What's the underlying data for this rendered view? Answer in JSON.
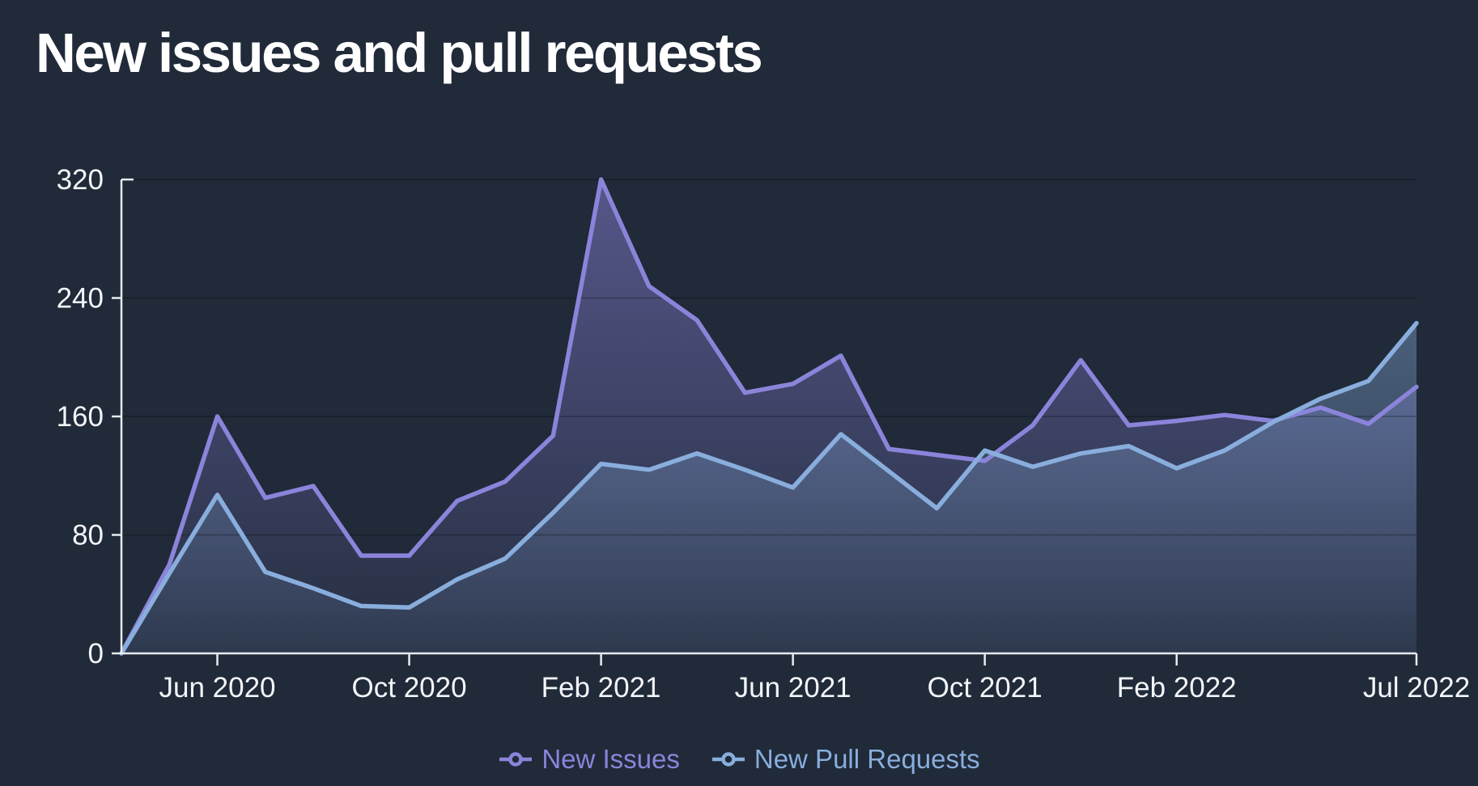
{
  "title": "New issues and pull requests",
  "colors": {
    "background": "#202a39",
    "axis": "#e8ebf0",
    "tick_text": "#f3f5f8",
    "grid": "rgba(0,0,0,0.28)"
  },
  "chart_data": {
    "type": "area",
    "title": "New issues and pull requests",
    "x": [
      "Apr 2020",
      "May 2020",
      "Jun 2020",
      "Jul 2020",
      "Aug 2020",
      "Sep 2020",
      "Oct 2020",
      "Nov 2020",
      "Dec 2020",
      "Jan 2021",
      "Feb 2021",
      "Mar 2021",
      "Apr 2021",
      "May 2021",
      "Jun 2021",
      "Jul 2021",
      "Aug 2021",
      "Sep 2021",
      "Oct 2021",
      "Nov 2021",
      "Dec 2021",
      "Jan 2022",
      "Feb 2022",
      "Mar 2022",
      "Apr 2022",
      "May 2022",
      "Jun 2022",
      "Jul 2022"
    ],
    "x_tick_labels": [
      {
        "label": "Jun 2020",
        "index": 2
      },
      {
        "label": "Oct 2020",
        "index": 6
      },
      {
        "label": "Feb 2021",
        "index": 10
      },
      {
        "label": "Jun 2021",
        "index": 14
      },
      {
        "label": "Oct 2021",
        "index": 18
      },
      {
        "label": "Feb 2022",
        "index": 22
      },
      {
        "label": "Jul 2022",
        "index": 27
      }
    ],
    "y_ticks": [
      0,
      80,
      160,
      240,
      320
    ],
    "ylim": [
      0,
      320
    ],
    "grid": "horizontal",
    "legend_position": "bottom",
    "series": [
      {
        "name": "New Issues",
        "color": "#8b84da",
        "values": [
          0,
          60,
          160,
          105,
          113,
          66,
          66,
          103,
          116,
          147,
          320,
          248,
          225,
          176,
          182,
          201,
          138,
          134,
          130,
          154,
          198,
          154,
          157,
          161,
          157,
          166,
          155,
          180
        ]
      },
      {
        "name": "New Pull Requests",
        "color": "#89aedd",
        "values": [
          0,
          54,
          107,
          55,
          44,
          32,
          31,
          50,
          64,
          95,
          128,
          124,
          135,
          124,
          112,
          148,
          123,
          98,
          137,
          126,
          135,
          140,
          125,
          137,
          156,
          172,
          184,
          223
        ]
      }
    ]
  },
  "legend": {
    "items": [
      {
        "label": "New Issues"
      },
      {
        "label": "New Pull Requests"
      }
    ]
  }
}
